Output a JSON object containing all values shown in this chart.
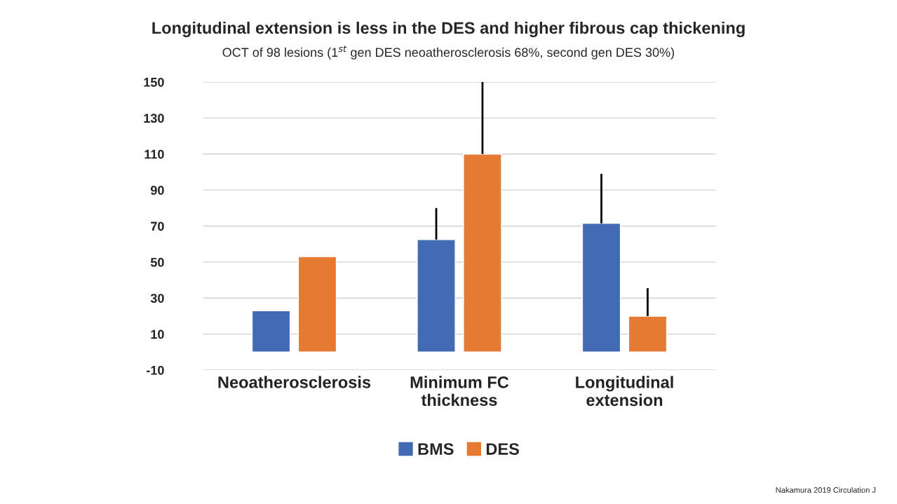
{
  "chart_data": {
    "type": "bar",
    "title": "Longitudinal extension is less in the DES and higher fibrous cap thickening",
    "subtitle": "OCT of 98 lesions (1$^{st}$ gen DES neoatherosclerosis 68%, second gen DES 30%)",
    "categories": [
      "Neoatherosclerosis",
      "Minimum FC\nthickness",
      "Longitudinal\nextension"
    ],
    "series": [
      {
        "name": "BMS",
        "color": "#4169b4",
        "values": [
          23,
          62.5,
          71.5
        ],
        "errors": [
          null,
          [
            62.5,
            80
          ],
          [
            71.5,
            99
          ]
        ]
      },
      {
        "name": "DES",
        "color": "#e47a33",
        "values": [
          53,
          110,
          20
        ],
        "errors": [
          null,
          [
            110,
            150
          ],
          [
            20,
            35.5
          ]
        ]
      }
    ],
    "ylim": [
      -10,
      150
    ],
    "yticks": [
      -10,
      10,
      30,
      50,
      70,
      90,
      110,
      130,
      150
    ],
    "grid": "y",
    "legend": "bottom",
    "annotations": [
      "Nakamura 2019 Circulation J"
    ]
  }
}
